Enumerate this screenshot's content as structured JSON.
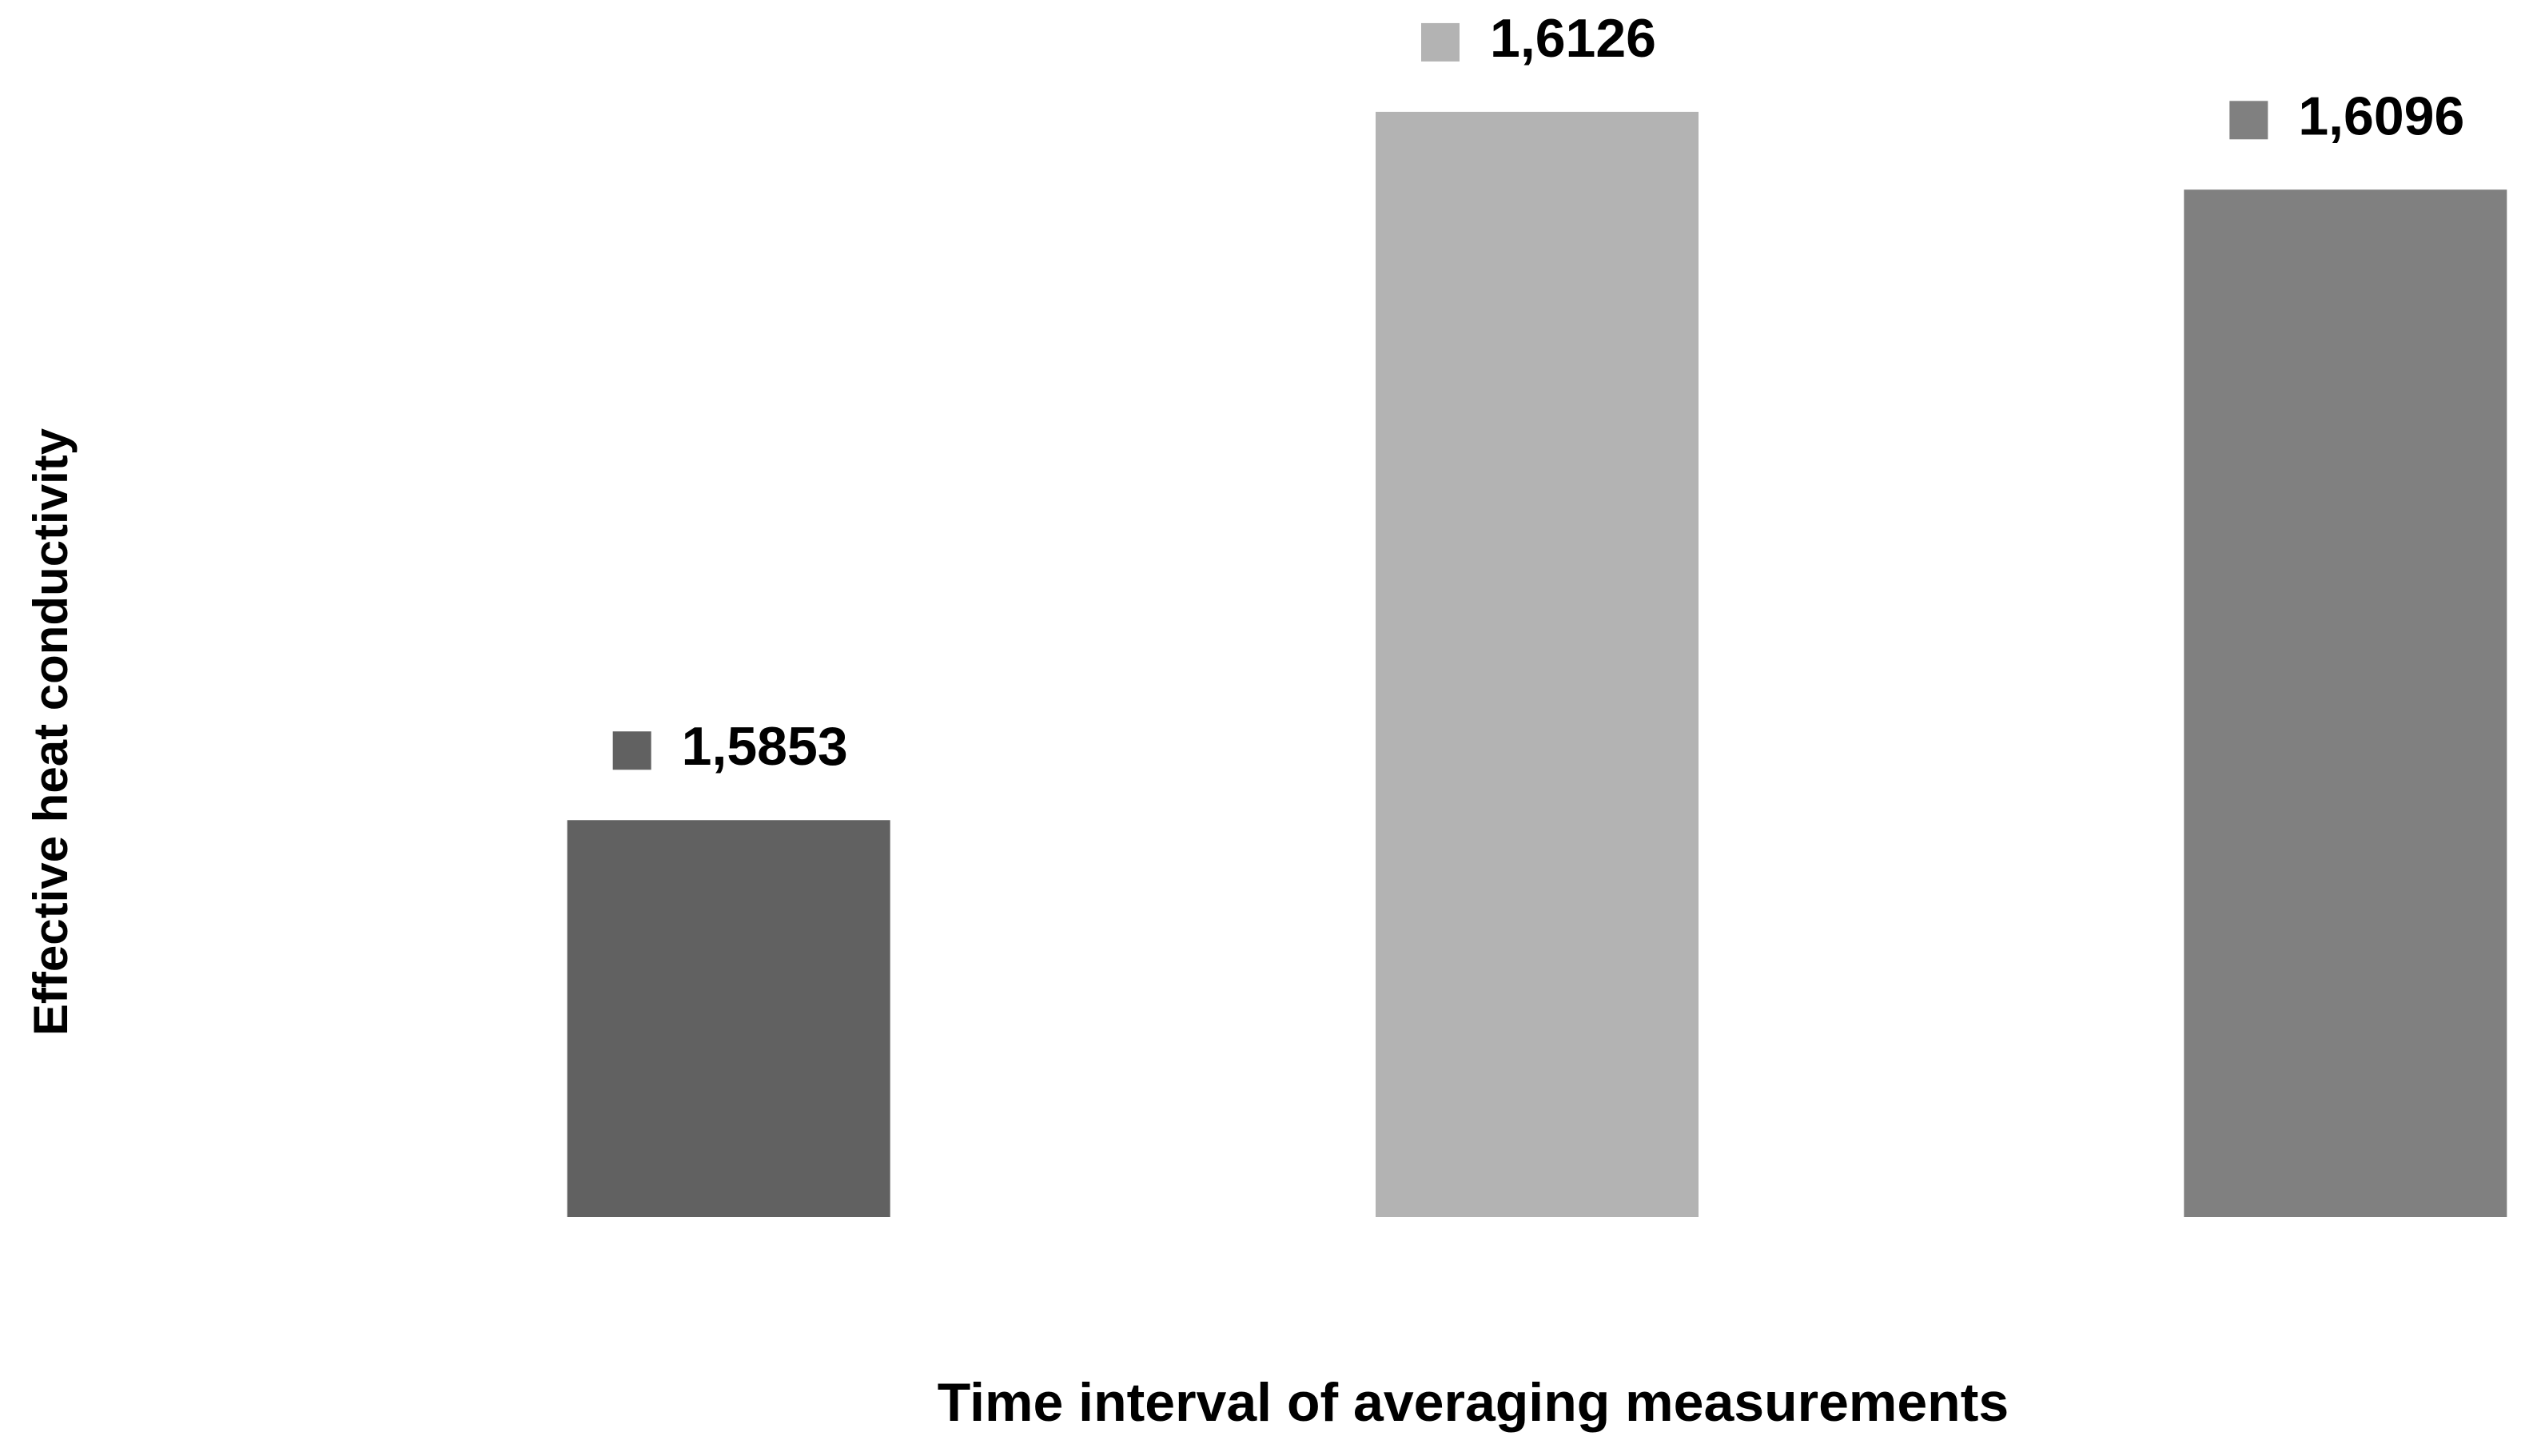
{
  "chart_data": {
    "type": "bar",
    "x_label": "Time interval of averaging measurements",
    "y_label": "Effective heat conductivity",
    "categories": [
      null,
      null,
      null
    ],
    "values": [
      1.5853,
      1.6126,
      1.6096
    ],
    "value_labels": [
      "1,5853",
      "1,6126",
      "1,6096"
    ],
    "colors": [
      "#616161",
      "#b3b3b3",
      "#808080"
    ],
    "ylim": [
      1.57,
      1.615
    ]
  }
}
